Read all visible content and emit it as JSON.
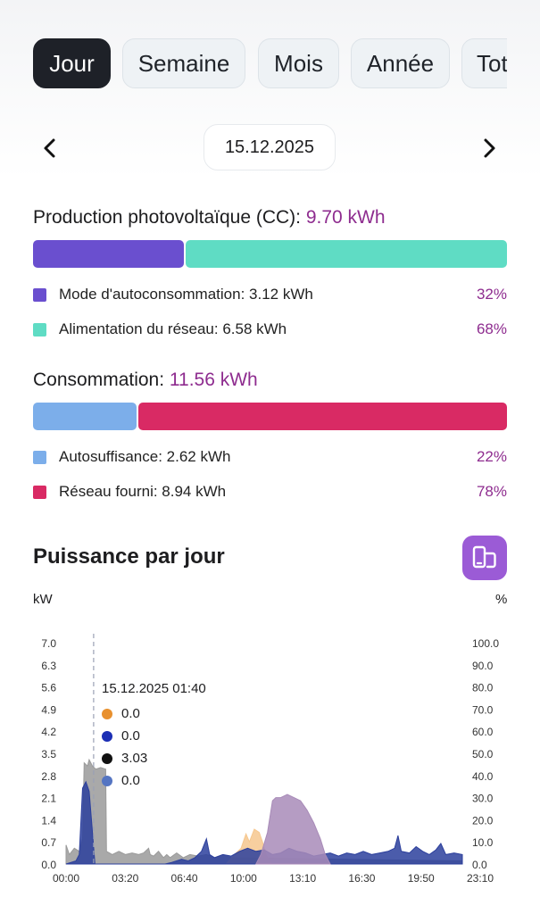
{
  "tabs": [
    "Jour",
    "Semaine",
    "Mois",
    "Année",
    "Tot"
  ],
  "active_tab": "Jour",
  "date": "15.12.2025",
  "production": {
    "title": "Production photovoltaïque (CC):",
    "value": "9.70 kWh",
    "segments": [
      {
        "label": "Mode d'autoconsommation: 3.12 kWh",
        "pct": "32%",
        "fraction": 0.32,
        "color": "#6a4fcf"
      },
      {
        "label": "Alimentation du réseau: 6.58 kWh",
        "pct": "68%",
        "fraction": 0.68,
        "color": "#5fdcc4"
      }
    ]
  },
  "consumption": {
    "title": "Consommation:",
    "value": "11.56 kWh",
    "segments": [
      {
        "label": "Autosuffisance: 2.62 kWh",
        "pct": "22%",
        "fraction": 0.22,
        "color": "#7caeea"
      },
      {
        "label": "Réseau fourni: 8.94 kWh",
        "pct": "78%",
        "fraction": 0.78,
        "color": "#d92a64"
      }
    ]
  },
  "chart": {
    "title": "Puissance par jour",
    "button_icon": "device-switch-icon",
    "left_unit": "kW",
    "right_unit": "%",
    "tooltip": {
      "time": "15.12.2025 01:40",
      "rows": [
        {
          "value": "0.0",
          "color": "#e8902e"
        },
        {
          "value": "0.0",
          "color": "#1c2fb5"
        },
        {
          "value": "3.03",
          "color": "#111111"
        },
        {
          "value": "0.0",
          "color": "#5575c2"
        }
      ]
    }
  },
  "chart_data": {
    "type": "area",
    "x_ticks": [
      "00:00",
      "03:20",
      "06:40",
      "10:00",
      "13:10",
      "16:30",
      "19:50",
      "23:10"
    ],
    "y_left_ticks": [
      "7.0",
      "6.3",
      "5.6",
      "4.9",
      "4.2",
      "3.5",
      "2.8",
      "2.1",
      "1.4",
      "0.7",
      "0.0"
    ],
    "y_right_ticks": [
      "100.0",
      "90.0",
      "80.0",
      "70.0",
      "60.0",
      "50.0",
      "40.0",
      "30.0",
      "20.0",
      "10.0",
      "0.0"
    ],
    "ylim_left": [
      0,
      7.0
    ],
    "ylim_right": [
      0,
      100
    ],
    "xlim_hours": [
      0,
      24
    ],
    "cursor_time_hours": 1.67,
    "series": [
      {
        "color": "#9a9a9a",
        "points": [
          [
            0,
            0.6
          ],
          [
            0.2,
            0.3
          ],
          [
            0.5,
            0.5
          ],
          [
            0.8,
            0.4
          ],
          [
            1.0,
            0.8
          ],
          [
            1.1,
            3.2
          ],
          [
            1.3,
            3.1
          ],
          [
            1.4,
            3.3
          ],
          [
            1.6,
            3.1
          ],
          [
            1.8,
            3.0
          ],
          [
            2.1,
            3.05
          ],
          [
            2.4,
            3.0
          ],
          [
            2.45,
            0.4
          ],
          [
            2.8,
            0.3
          ],
          [
            3.2,
            0.4
          ],
          [
            3.6,
            0.3
          ],
          [
            4.0,
            0.35
          ],
          [
            4.4,
            0.3
          ],
          [
            4.7,
            0.35
          ],
          [
            5.0,
            0.5
          ],
          [
            5.1,
            0.3
          ],
          [
            5.3,
            0.25
          ],
          [
            5.4,
            0.3
          ],
          [
            5.6,
            0.4
          ],
          [
            5.75,
            0.3
          ],
          [
            5.9,
            0.2
          ],
          [
            6.1,
            0.3
          ],
          [
            6.3,
            0.2
          ],
          [
            6.7,
            0.35
          ],
          [
            7.1,
            0.2
          ],
          [
            7.5,
            0.3
          ],
          [
            8.0,
            0.25
          ],
          [
            8.5,
            0.3
          ],
          [
            9.0,
            0.2
          ],
          [
            9.5,
            0.3
          ],
          [
            10,
            0.2
          ],
          [
            24,
            0.1
          ]
        ]
      },
      {
        "color": "#f6c78e",
        "points": [
          [
            9.7,
            0
          ],
          [
            10.2,
            0.3
          ],
          [
            10.6,
            0.5
          ],
          [
            10.9,
            0.95
          ],
          [
            11.1,
            0.7
          ],
          [
            11.4,
            1.1
          ],
          [
            11.7,
            1.0
          ],
          [
            11.9,
            0.7
          ],
          [
            12.1,
            0.3
          ],
          [
            12.3,
            0.1
          ],
          [
            12.5,
            0
          ]
        ]
      },
      {
        "color": "#2c3f9c",
        "points": [
          [
            0,
            0
          ],
          [
            0.6,
            0.1
          ],
          [
            0.8,
            0.3
          ],
          [
            1.0,
            2.4
          ],
          [
            1.2,
            2.6
          ],
          [
            1.4,
            2.3
          ],
          [
            1.6,
            1.0
          ],
          [
            1.75,
            0
          ],
          [
            2.0,
            0
          ],
          [
            6.0,
            0
          ],
          [
            6.4,
            0.05
          ],
          [
            7.0,
            0.15
          ],
          [
            7.4,
            0.1
          ],
          [
            7.8,
            0.2
          ],
          [
            8.2,
            0.4
          ],
          [
            8.5,
            0.8
          ],
          [
            8.7,
            0.3
          ],
          [
            9.0,
            0.2
          ],
          [
            9.5,
            0.3
          ],
          [
            10.0,
            0.25
          ],
          [
            10.5,
            0.4
          ],
          [
            11.0,
            0.5
          ],
          [
            11.5,
            0.4
          ],
          [
            12.0,
            0.45
          ],
          [
            12.5,
            0.3
          ],
          [
            13.0,
            0.35
          ],
          [
            13.5,
            0.5
          ],
          [
            14.0,
            0.4
          ],
          [
            14.5,
            0.35
          ],
          [
            15.0,
            0.25
          ],
          [
            15.5,
            0.3
          ],
          [
            16.0,
            0.35
          ],
          [
            16.5,
            0.25
          ],
          [
            17.0,
            0.35
          ],
          [
            17.5,
            0.3
          ],
          [
            18.0,
            0.4
          ],
          [
            18.5,
            0.3
          ],
          [
            19.0,
            0.35
          ],
          [
            19.5,
            0.4
          ],
          [
            19.9,
            0.5
          ],
          [
            20.1,
            0.9
          ],
          [
            20.3,
            0.4
          ],
          [
            20.8,
            0.35
          ],
          [
            21.2,
            0.55
          ],
          [
            21.6,
            0.4
          ],
          [
            22.0,
            0.3
          ],
          [
            22.4,
            0.45
          ],
          [
            22.7,
            0.65
          ],
          [
            23.0,
            0.3
          ],
          [
            23.5,
            0.35
          ],
          [
            24,
            0.3
          ]
        ]
      },
      {
        "color": "#a88bb8",
        "points": [
          [
            11.5,
            0
          ],
          [
            11.8,
            0.3
          ],
          [
            12.2,
            1.0
          ],
          [
            12.5,
            2.0
          ],
          [
            12.7,
            2.1
          ],
          [
            13.0,
            2.1
          ],
          [
            13.4,
            2.2
          ],
          [
            13.8,
            2.1
          ],
          [
            14.2,
            2.0
          ],
          [
            14.6,
            1.7
          ],
          [
            15.0,
            1.3
          ],
          [
            15.4,
            0.8
          ],
          [
            15.7,
            0.3
          ],
          [
            16.0,
            0
          ]
        ]
      }
    ]
  }
}
